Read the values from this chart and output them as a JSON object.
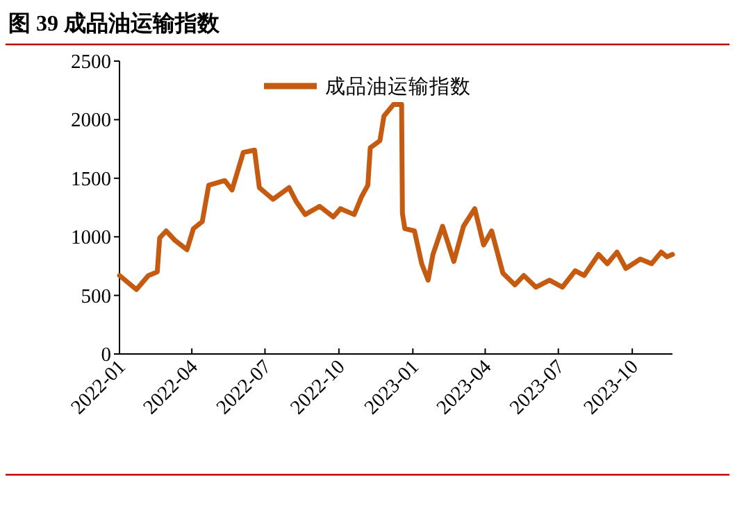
{
  "chart_data": {
    "type": "line",
    "title": "图 39  成品油运输指数",
    "x": [
      "2022-01-01",
      "2022-01-22",
      "2022-02-06",
      "2022-02-17",
      "2022-02-20",
      "2022-02-28",
      "2022-03-11",
      "2022-03-26",
      "2022-04-03",
      "2022-04-14",
      "2022-04-22",
      "2022-05-12",
      "2022-05-21",
      "2022-06-04",
      "2022-06-18",
      "2022-06-24",
      "2022-07-11",
      "2022-07-31",
      "2022-08-09",
      "2022-08-20",
      "2022-09-07",
      "2022-09-24",
      "2022-10-03",
      "2022-10-20",
      "2022-10-29",
      "2022-11-06",
      "2022-11-09",
      "2022-11-21",
      "2022-11-26",
      "2022-12-08",
      "2022-12-18",
      "2022-12-19",
      "2022-12-22",
      "2023-01-03",
      "2023-01-12",
      "2023-01-20",
      "2023-01-26",
      "2023-02-07",
      "2023-02-21",
      "2023-03-05",
      "2023-03-19",
      "2023-03-30",
      "2023-04-09",
      "2023-04-23",
      "2023-05-08",
      "2023-05-19",
      "2023-06-03",
      "2023-06-20",
      "2023-07-06",
      "2023-07-22",
      "2023-08-02",
      "2023-08-20",
      "2023-08-31",
      "2023-09-12",
      "2023-09-23",
      "2023-10-11",
      "2023-10-25",
      "2023-11-06",
      "2023-11-13",
      "2023-11-20"
    ],
    "series": [
      {
        "name": "成品油运输指数",
        "color": "#c55a11",
        "values": [
          670,
          550,
          670,
          700,
          990,
          1050,
          970,
          890,
          1070,
          1130,
          1440,
          1480,
          1400,
          1720,
          1740,
          1420,
          1320,
          1420,
          1300,
          1190,
          1260,
          1170,
          1240,
          1190,
          1340,
          1440,
          1760,
          1820,
          2030,
          2130,
          2130,
          1200,
          1070,
          1050,
          770,
          630,
          850,
          1090,
          790,
          1090,
          1240,
          930,
          1050,
          690,
          590,
          670,
          570,
          630,
          570,
          710,
          670,
          850,
          770,
          870,
          730,
          810,
          770,
          870,
          830,
          850
        ]
      }
    ],
    "xlim": [
      "2022-01-01",
      "2023-11-20"
    ],
    "xticks": [
      {
        "value": "2022-01-01",
        "label": "2022-01"
      },
      {
        "value": "2022-04-01",
        "label": "2022-04"
      },
      {
        "value": "2022-07-01",
        "label": "2022-07"
      },
      {
        "value": "2022-10-01",
        "label": "2022-10"
      },
      {
        "value": "2023-01-01",
        "label": "2023-01"
      },
      {
        "value": "2023-04-01",
        "label": "2023-04"
      },
      {
        "value": "2023-07-01",
        "label": "2023-07"
      },
      {
        "value": "2023-10-01",
        "label": "2023-10"
      }
    ],
    "ylim": [
      0,
      2500
    ],
    "yticks": [
      0,
      500,
      1000,
      1500,
      2000,
      2500
    ],
    "grid": false,
    "legend": "top",
    "marker": "none",
    "line_style": "solid"
  }
}
